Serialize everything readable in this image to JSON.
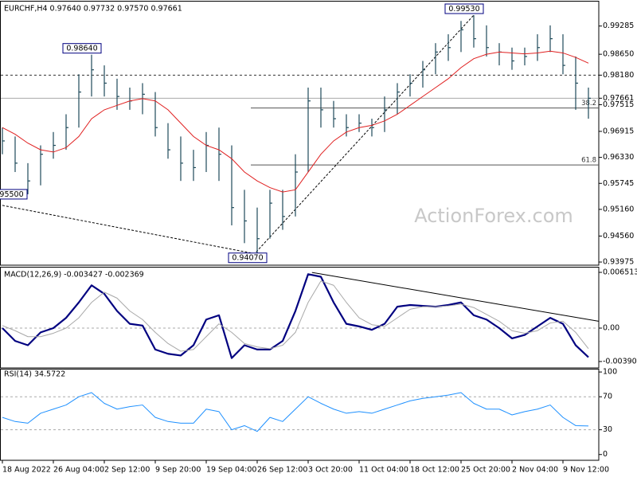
{
  "chart_data": [
    {
      "type": "ohlc",
      "title": "EURCHF,H4  0.97640 0.97732 0.97570 0.97661",
      "watermark": "ActionForex.com",
      "categories": [
        "18 Aug 2022",
        null,
        null,
        null,
        "26 Aug 04:00",
        null,
        null,
        null,
        "2 Sep 12:00",
        null,
        null,
        null,
        "9 Sep 20:00",
        null,
        null,
        null,
        "19 Sep 04:00",
        null,
        null,
        null,
        "26 Sep 12:00",
        null,
        null,
        null,
        "3 Oct 20:00",
        null,
        null,
        null,
        "11 Oct 04:00",
        null,
        null,
        null,
        "18 Oct 12:00",
        null,
        null,
        null,
        "25 Oct 20:00",
        null,
        null,
        null,
        "2 Nov 04:00",
        null,
        null,
        null,
        "9 Nov 12:00",
        null,
        null
      ],
      "color": "#1e4a5a",
      "high": [
        0.97,
        0.968,
        0.962,
        0.966,
        0.969,
        0.973,
        0.982,
        0.9864,
        0.984,
        0.981,
        0.979,
        0.98,
        0.978,
        0.971,
        0.968,
        0.965,
        0.969,
        0.97,
        0.966,
        0.956,
        0.952,
        0.956,
        0.956,
        0.964,
        0.979,
        0.979,
        0.976,
        0.973,
        0.973,
        0.972,
        0.977,
        0.98,
        0.982,
        0.985,
        0.989,
        0.991,
        0.994,
        0.9953,
        0.993,
        0.989,
        0.988,
        0.988,
        0.991,
        0.993,
        0.991,
        0.986,
        0.979
      ],
      "low": [
        0.964,
        0.96,
        0.955,
        0.957,
        0.963,
        0.965,
        0.97,
        0.977,
        0.977,
        0.974,
        0.974,
        0.973,
        0.968,
        0.963,
        0.958,
        0.958,
        0.96,
        0.958,
        0.948,
        0.944,
        0.9407,
        0.945,
        0.947,
        0.95,
        0.96,
        0.97,
        0.97,
        0.968,
        0.969,
        0.968,
        0.969,
        0.973,
        0.977,
        0.979,
        0.982,
        0.985,
        0.987,
        0.988,
        0.986,
        0.984,
        0.983,
        0.984,
        0.985,
        0.987,
        0.982,
        0.974,
        0.972
      ],
      "close": [
        0.967,
        0.962,
        0.958,
        0.964,
        0.966,
        0.97,
        0.978,
        0.983,
        0.98,
        0.977,
        0.976,
        0.9775,
        0.97,
        0.965,
        0.962,
        0.961,
        0.966,
        0.964,
        0.952,
        0.949,
        0.945,
        0.953,
        0.95,
        0.96,
        0.976,
        0.974,
        0.972,
        0.97,
        0.971,
        0.97,
        0.974,
        0.978,
        0.98,
        0.983,
        0.987,
        0.988,
        0.992,
        0.99,
        0.988,
        0.987,
        0.985,
        0.986,
        0.988,
        0.99,
        0.984,
        0.98,
        0.9766
      ],
      "ma": {
        "color": "#e02020",
        "values": [
          0.97,
          0.9685,
          0.9665,
          0.965,
          0.9645,
          0.9655,
          0.968,
          0.972,
          0.974,
          0.975,
          0.976,
          0.9765,
          0.976,
          0.974,
          0.971,
          0.968,
          0.966,
          0.965,
          0.963,
          0.96,
          0.958,
          0.9565,
          0.9555,
          0.956,
          0.96,
          0.964,
          0.967,
          0.969,
          0.97,
          0.9705,
          0.9715,
          0.973,
          0.975,
          0.977,
          0.979,
          0.981,
          0.9835,
          0.9855,
          0.9865,
          0.987,
          0.9868,
          0.9866,
          0.9868,
          0.9872,
          0.9868,
          0.9858,
          0.9845
        ]
      },
      "ylim": [
        0.93904,
        0.99835
      ],
      "yticks": [
        0.99285,
        {
          "value": 0.9865,
          "label": "0.98650"
        },
        {
          "value": 0.9818,
          "label": "0.98180"
        },
        0.97661,
        0.97515,
        0.96915,
        {
          "value": 0.9633,
          "label": "0.96330"
        },
        0.95745,
        {
          "value": 0.9516,
          "label": "0.95160"
        },
        {
          "value": 0.9456,
          "label": "0.94560"
        },
        0.93975
      ],
      "hlines": [
        {
          "value": 0.9818,
          "style": "dashed"
        },
        {
          "value": 0.97661,
          "style": "solid"
        }
      ],
      "fibo": [
        {
          "label": "38.2",
          "value": 0.9744,
          "from": 19.5
        },
        {
          "label": "61.8",
          "value": 0.9616,
          "from": 19.5
        }
      ],
      "trendlines": [
        {
          "x": [
            0,
            19.5
          ],
          "values": [
            0.9525,
            0.9418
          ]
        },
        {
          "x": [
            19.5,
            37
          ],
          "values": [
            0.9407,
            0.9953
          ]
        }
      ],
      "annotations": [
        {
          "label": "0.98640",
          "value": 0.9864,
          "x": 7
        },
        {
          "label": "0.99530",
          "value": 0.9953,
          "x": 37
        },
        {
          "label": "0.94070",
          "value": 0.9407,
          "x": 20
        },
        {
          "label": "0.95500",
          "value": 0.955,
          "x": 0
        }
      ]
    },
    {
      "type": "line",
      "title": "MACD(12,26,9) -0.003427 -0.002369",
      "series": [
        {
          "color": "#000080",
          "width": 2.2,
          "values": [
            0.0,
            -0.0015,
            -0.002,
            -0.0005,
            0.0,
            0.0012,
            0.003,
            0.005,
            0.004,
            0.002,
            0.0005,
            0.0003,
            -0.0025,
            -0.003,
            -0.0032,
            -0.002,
            0.001,
            0.0015,
            -0.0035,
            -0.002,
            -0.0025,
            -0.0025,
            -0.0015,
            0.002,
            0.0063,
            0.006,
            0.003,
            0.0005,
            0.0002,
            -0.0002,
            0.0005,
            0.0025,
            0.0027,
            0.0026,
            0.0025,
            0.0027,
            0.003,
            0.0015,
            0.001,
            0.0,
            -0.0012,
            -0.0008,
            0.0002,
            0.0012,
            0.0005,
            -0.002,
            -0.0034
          ]
        },
        {
          "color": "#a8a8a8",
          "width": 1,
          "values": [
            0.0003,
            -0.0003,
            -0.001,
            -0.001,
            -0.0006,
            0.0,
            0.0012,
            0.003,
            0.0042,
            0.0035,
            0.002,
            0.001,
            -0.0005,
            -0.0018,
            -0.0027,
            -0.0025,
            -0.001,
            0.0005,
            -0.0005,
            -0.0018,
            -0.0022,
            -0.0024,
            -0.002,
            -0.0005,
            0.003,
            0.0055,
            0.005,
            0.003,
            0.0012,
            0.0004,
            0.0002,
            0.0012,
            0.0022,
            0.0025,
            0.0025,
            0.0026,
            0.0028,
            0.0024,
            0.0016,
            0.0008,
            -0.0003,
            -0.0006,
            -0.0003,
            0.0006,
            0.0008,
            -0.0005,
            -0.0024
          ]
        }
      ],
      "ylim": [
        -0.00465,
        0.007071
      ],
      "yticks": [
        0.006513,
        {
          "value": 0,
          "label": "0.00"
        },
        -0.003901
      ],
      "levels": [
        0
      ],
      "trendlines": [
        {
          "x": [
            24.3,
            46.8
          ],
          "values": [
            0.0065,
            0.0008
          ]
        }
      ]
    },
    {
      "type": "line",
      "title": "RSI(14) 34.5722",
      "series": [
        {
          "color": "#1e90ff",
          "width": 1,
          "values": [
            45,
            40,
            38,
            50,
            55,
            60,
            70,
            75,
            62,
            55,
            58,
            60,
            45,
            40,
            38,
            38,
            55,
            52,
            30,
            35,
            28,
            45,
            40,
            55,
            70,
            62,
            55,
            50,
            52,
            50,
            55,
            60,
            65,
            68,
            70,
            72,
            75,
            62,
            55,
            55,
            48,
            52,
            55,
            60,
            45,
            35,
            34.6
          ]
        }
      ],
      "ylim": [
        -7,
        103
      ],
      "yticks": [
        100,
        70,
        30,
        0
      ],
      "levels": [
        70,
        30
      ]
    }
  ]
}
